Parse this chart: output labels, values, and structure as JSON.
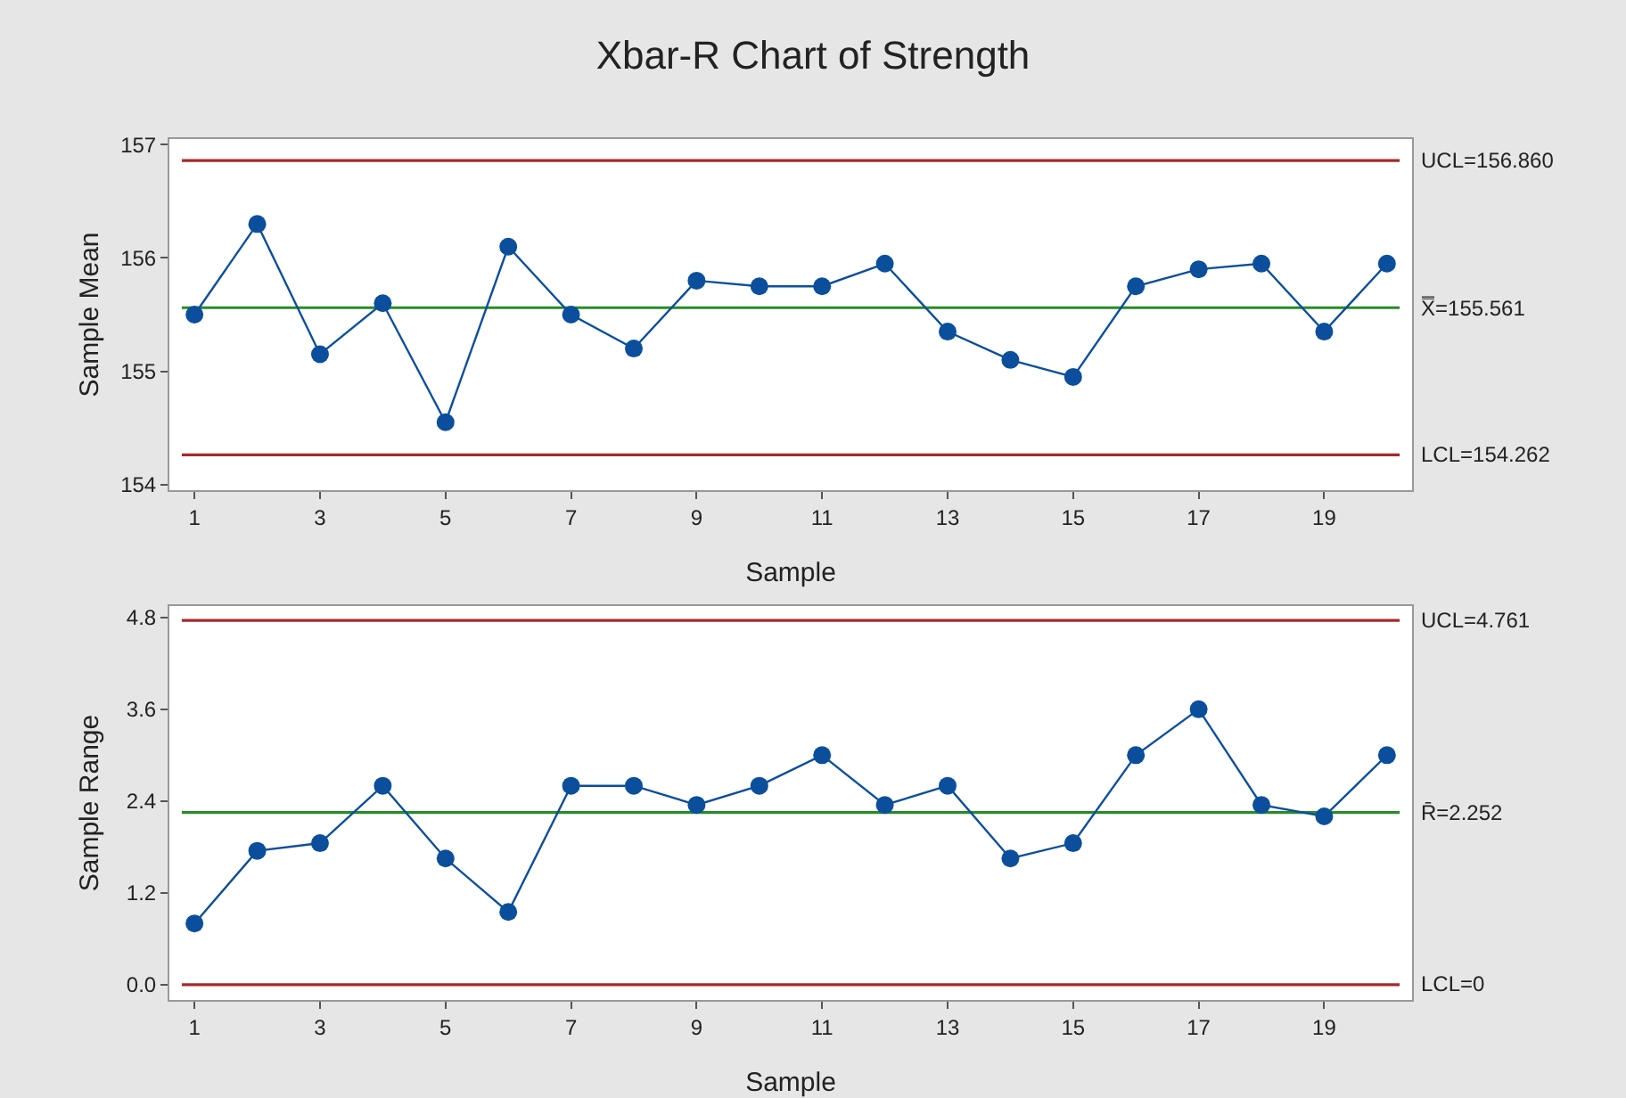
{
  "chart_data": [
    {
      "type": "line",
      "title": "Xbar-R Chart of Strength",
      "xlabel": "Sample",
      "ylabel": "Sample Mean",
      "x": [
        1,
        2,
        3,
        4,
        5,
        6,
        7,
        8,
        9,
        10,
        11,
        12,
        13,
        14,
        15,
        16,
        17,
        18,
        19,
        20
      ],
      "series": [
        {
          "color": "#0b4f9c",
          "values": [
            155.5,
            156.3,
            155.15,
            155.6,
            154.55,
            156.1,
            155.5,
            155.2,
            155.8,
            155.75,
            155.75,
            155.95,
            155.35,
            155.1,
            154.95,
            155.75,
            155.9,
            155.95,
            155.35,
            155.95
          ]
        }
      ],
      "xlim": [
        0.6,
        20.4
      ],
      "xticks": [
        1,
        3,
        5,
        7,
        9,
        11,
        13,
        15,
        17,
        19
      ],
      "ylim": [
        153.95,
        157.05
      ],
      "yticks": [
        154,
        155,
        156,
        157
      ],
      "ref_lines": [
        {
          "axis": "y",
          "value": 156.86,
          "label": "UCL=156.860",
          "color": "#a52a2a"
        },
        {
          "axis": "y",
          "value": 155.561,
          "label": "X̿=155.561",
          "color": "#2a8a2a"
        },
        {
          "axis": "y",
          "value": 154.262,
          "label": "LCL=154.262",
          "color": "#a52a2a"
        }
      ],
      "marker": "circle",
      "line_style": "solid",
      "grid": false
    },
    {
      "type": "line",
      "xlabel": "Sample",
      "ylabel": "Sample Range",
      "x": [
        1,
        2,
        3,
        4,
        5,
        6,
        7,
        8,
        9,
        10,
        11,
        12,
        13,
        14,
        15,
        16,
        17,
        18,
        19,
        20
      ],
      "series": [
        {
          "color": "#0b4f9c",
          "values": [
            0.8,
            1.75,
            1.85,
            2.6,
            1.65,
            0.95,
            2.6,
            2.6,
            2.35,
            2.6,
            3.0,
            2.35,
            2.6,
            1.65,
            1.85,
            3.0,
            3.6,
            2.35,
            2.2,
            3.0
          ]
        }
      ],
      "xlim": [
        0.6,
        20.4
      ],
      "xticks": [
        1,
        3,
        5,
        7,
        9,
        11,
        13,
        15,
        17,
        19
      ],
      "ylim": [
        -0.2,
        4.95
      ],
      "yticks": [
        {
          "value": 0,
          "label": "0.0"
        },
        1.2,
        2.4,
        3.6,
        4.8
      ],
      "ref_lines": [
        {
          "axis": "y",
          "value": 4.761,
          "label": "UCL=4.761",
          "color": "#a52a2a"
        },
        {
          "axis": "y",
          "value": 2.252,
          "label": "R̄=2.252",
          "color": "#2a8a2a"
        },
        {
          "axis": "y",
          "value": 0,
          "label": "LCL=0",
          "color": "#a52a2a"
        }
      ],
      "marker": "circle",
      "line_style": "solid",
      "grid": false
    }
  ]
}
